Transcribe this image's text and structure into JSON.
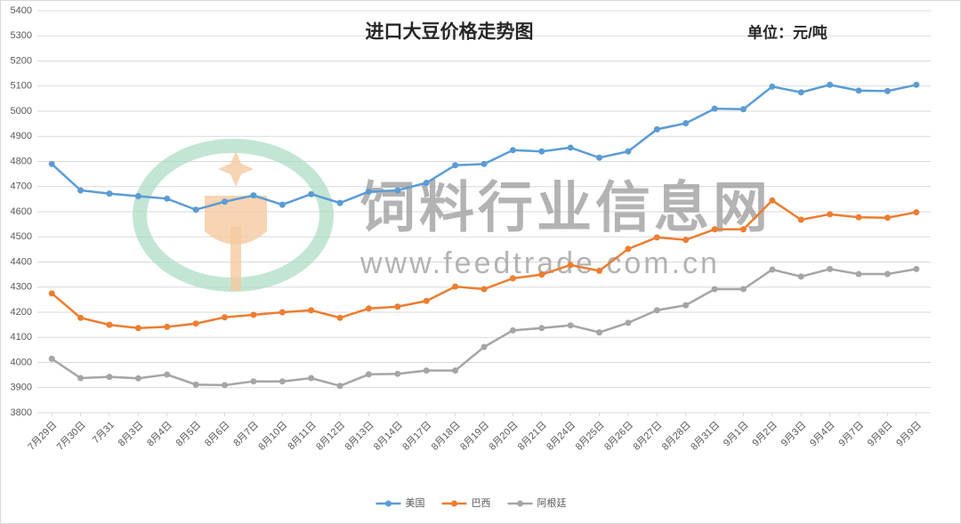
{
  "chart_data": {
    "type": "line",
    "title": "进口大豆价格走势图",
    "unit_label": "单位：元/吨",
    "watermark": [
      "饲料行业信息网",
      "www.feedtrade.com.cn"
    ],
    "categories": [
      "7月29日",
      "7月30日",
      "7月31",
      "8月3日",
      "8月4日",
      "8月5日",
      "8月6日",
      "8月7日",
      "8月10日",
      "8月11日",
      "8月12日",
      "8月13日",
      "8月14日",
      "8月17日",
      "8月18日",
      "8月19日",
      "8月20日",
      "8月21日",
      "8月24日",
      "8月25日",
      "8月26日",
      "8月27日",
      "8月28日",
      "8月31日",
      "9月1日",
      "9月2日",
      "9月3日",
      "9月4日",
      "9月7日",
      "9月8日",
      "9月9日"
    ],
    "series": [
      {
        "name": "美国",
        "color": "#5b9bd5",
        "values": [
          4790,
          4685,
          4672,
          4662,
          4652,
          4608,
          4640,
          4665,
          4628,
          4670,
          4635,
          4680,
          4685,
          4715,
          4785,
          4790,
          4845,
          4840,
          4855,
          4815,
          4840,
          4928,
          4952,
          5010,
          5008,
          5098,
          5075,
          5105,
          5082,
          5080,
          5105
        ]
      },
      {
        "name": "巴西",
        "color": "#ed7d31",
        "values": [
          4275,
          4178,
          4150,
          4137,
          4142,
          4155,
          4180,
          4190,
          4200,
          4208,
          4178,
          4215,
          4222,
          4245,
          4302,
          4292,
          4335,
          4350,
          4388,
          4365,
          4452,
          4498,
          4488,
          4530,
          4530,
          4645,
          4568,
          4590,
          4578,
          4576,
          4598
        ]
      },
      {
        "name": "阿根廷",
        "color": "#a5a5a5",
        "values": [
          4015,
          3938,
          3943,
          3937,
          3952,
          3912,
          3910,
          3925,
          3925,
          3938,
          3907,
          3953,
          3955,
          3968,
          3968,
          4062,
          4128,
          4137,
          4148,
          4120,
          4158,
          4208,
          4228,
          4292,
          4292,
          4370,
          4342,
          4372,
          4352,
          4352,
          4372
        ]
      }
    ],
    "ylim": [
      3800,
      5400
    ],
    "yticks": [
      3800,
      3900,
      4000,
      4100,
      4200,
      4300,
      4400,
      4500,
      4600,
      4700,
      4800,
      4900,
      5000,
      5100,
      5200,
      5300,
      5400
    ],
    "grid": true,
    "legend": "bottom"
  }
}
